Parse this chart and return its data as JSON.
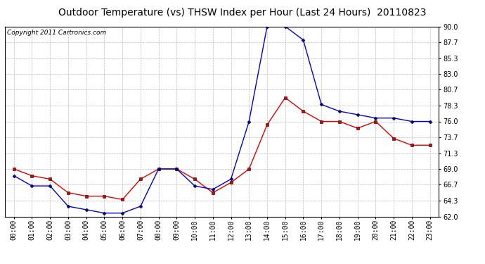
{
  "title": "Outdoor Temperature (vs) THSW Index per Hour (Last 24 Hours)  20110823",
  "copyright": "Copyright 2011 Cartronics.com",
  "hours": [
    "00:00",
    "01:00",
    "02:00",
    "03:00",
    "04:00",
    "05:00",
    "06:00",
    "07:00",
    "08:00",
    "09:00",
    "10:00",
    "11:00",
    "12:00",
    "13:00",
    "14:00",
    "15:00",
    "16:00",
    "17:00",
    "18:00",
    "19:00",
    "20:00",
    "21:00",
    "22:00",
    "23:00"
  ],
  "temp_red": [
    69.0,
    68.0,
    67.5,
    65.5,
    65.0,
    65.0,
    64.5,
    67.5,
    69.0,
    69.0,
    67.5,
    65.5,
    67.0,
    69.0,
    75.5,
    79.5,
    77.5,
    76.0,
    76.0,
    75.0,
    76.0,
    73.5,
    72.5,
    72.5
  ],
  "thsw_blue": [
    68.0,
    66.5,
    66.5,
    63.5,
    63.0,
    62.5,
    62.5,
    63.5,
    69.0,
    69.0,
    66.5,
    66.0,
    67.5,
    76.0,
    90.0,
    90.0,
    88.0,
    78.5,
    77.5,
    77.0,
    76.5,
    76.5,
    76.0,
    76.0
  ],
  "ylim": [
    62.0,
    90.0
  ],
  "yticks": [
    62.0,
    64.3,
    66.7,
    69.0,
    71.3,
    73.7,
    76.0,
    78.3,
    80.7,
    83.0,
    85.3,
    87.7,
    90.0
  ],
  "red_color": "#dd0000",
  "blue_color": "#0000cc",
  "bg_color": "#ffffff",
  "grid_color": "#bbbbbb",
  "title_fontsize": 10,
  "copyright_fontsize": 6.5,
  "tick_fontsize": 7
}
